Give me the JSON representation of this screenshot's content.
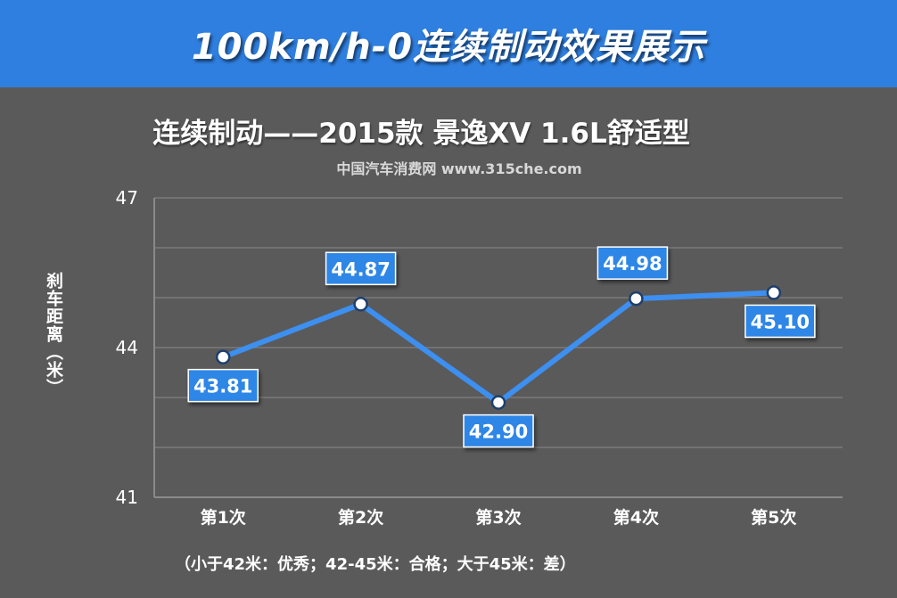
{
  "banner": {
    "title": "100km/h-0连续制动效果展示"
  },
  "watermark": "中国汽车消费网 www.315che.com",
  "footnote": "（小于42米：优秀；42-45米：合格；大于45米：差）",
  "colors": {
    "banner": "#2f7fe0",
    "background": "#5a5a5a",
    "line": "#3d8ff0",
    "label_box": "#2f86e6"
  },
  "chart_data": {
    "type": "line",
    "title": "连续制动——2015款 景逸XV 1.6L舒适型",
    "xlabel": "",
    "ylabel": "刹车距离（米）",
    "categories": [
      "第1次",
      "第2次",
      "第3次",
      "第4次",
      "第5次"
    ],
    "series": [
      {
        "values": [
          43.81,
          44.87,
          42.9,
          44.98,
          45.1
        ]
      }
    ],
    "data_labels": [
      "43.81",
      "44.87",
      "42.90",
      "44.98",
      "45.10"
    ],
    "ylim": [
      41,
      47
    ],
    "yticks": [
      41,
      44,
      47
    ],
    "ytick_labels": [
      "41",
      "44",
      "47"
    ],
    "grid": true,
    "legend": "none"
  }
}
